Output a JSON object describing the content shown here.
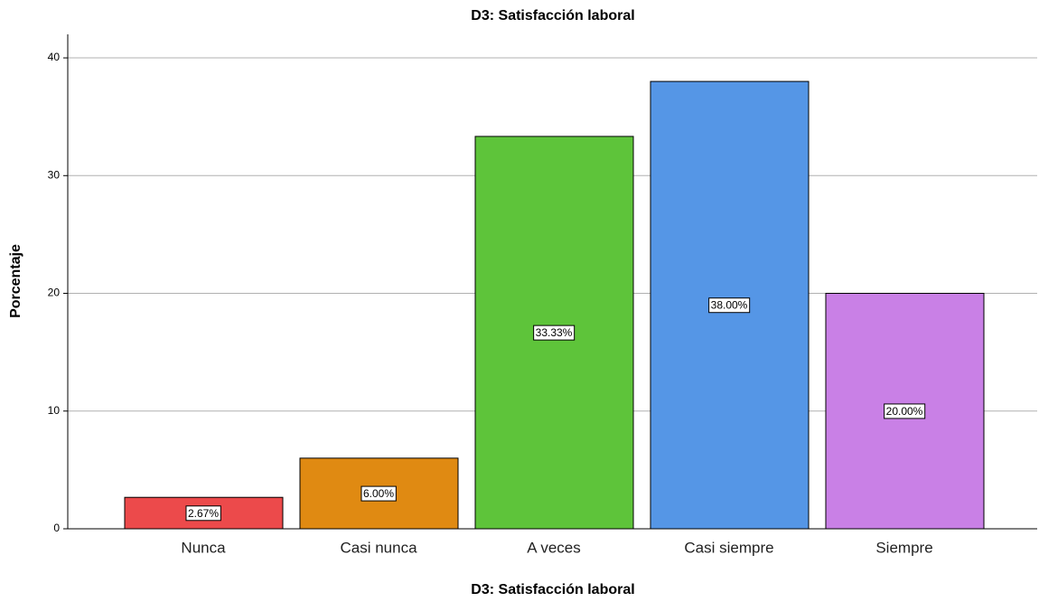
{
  "chart_data": {
    "type": "bar",
    "title": "D3: Satisfacción laboral",
    "x_label": "D3: Satisfacción laboral",
    "y_label": "Porcentaje",
    "categories": [
      "Nunca",
      "Casi nunca",
      "A veces",
      "Casi siempre",
      "Siempre"
    ],
    "values": [
      2.67,
      6.0,
      33.33,
      38.0,
      20.0
    ],
    "value_labels": [
      "2.67%",
      "6.00%",
      "33.33%",
      "38.00%",
      "20.00%"
    ],
    "colors": [
      "#ec4a4b",
      "#e08a12",
      "#5ec43a",
      "#5596e6",
      "#c980e6"
    ],
    "ylim": [
      0,
      42
    ],
    "yticks": [
      0,
      10,
      20,
      30,
      40
    ],
    "grid": true
  }
}
